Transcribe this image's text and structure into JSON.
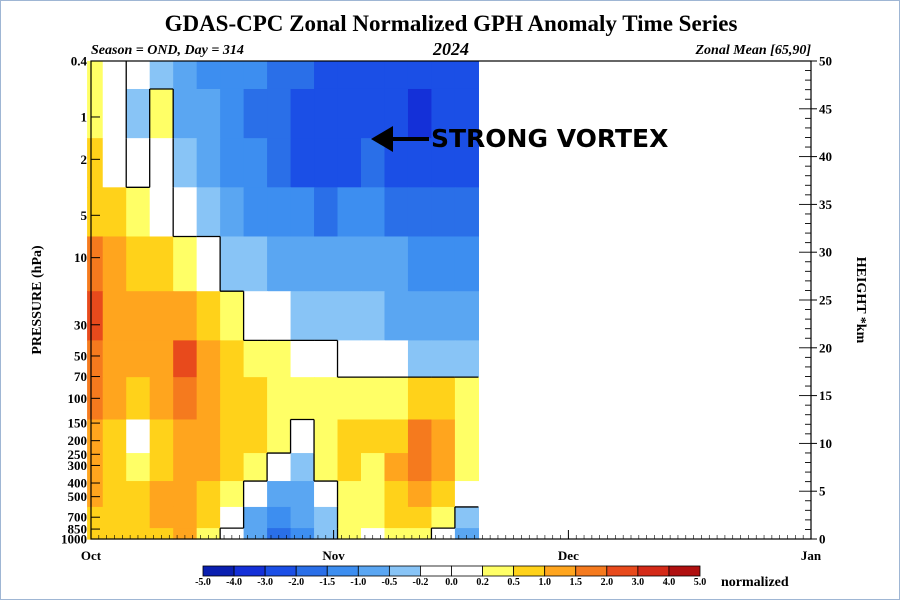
{
  "chart_data": {
    "type": "heatmap",
    "title": "GDAS-CPC Zonal Normalized GPH Anomaly Time Series",
    "season_label": "Season = OND, Day = 314",
    "year_label": "2024",
    "region_label": "Zonal Mean [65,90]",
    "ylabel": "PRESSURE (hPa)",
    "y2label": "HEIGHT *km",
    "colorbar_label": "normalized",
    "annotation": "STRONG VORTEX",
    "x_ticks": [
      "Oct",
      "Nov",
      "Dec",
      "Jan"
    ],
    "y_ticks": [
      "0.4",
      "1",
      "2",
      "5",
      "10",
      "30",
      "50",
      "70",
      "100",
      "150",
      "200",
      "250",
      "300",
      "400",
      "500",
      "700",
      "850",
      "1000"
    ],
    "y2_ticks": [
      "50",
      "45",
      "40",
      "35",
      "30",
      "25",
      "20",
      "15",
      "10",
      "5",
      "0"
    ],
    "colorbar_levels": [
      "-5.0",
      "-4.0",
      "-3.0",
      "-2.0",
      "-1.5",
      "-1.0",
      "-0.5",
      "-0.2",
      "0.0",
      "0.2",
      "0.5",
      "1.0",
      "1.5",
      "2.0",
      "3.0",
      "4.0",
      "5.0"
    ],
    "colorbar_colors": [
      "#0a1fb0",
      "#1430d8",
      "#1b4fe6",
      "#2a6fe8",
      "#3d8ef0",
      "#5aa6f2",
      "#88c4f6",
      "#ffffff",
      "#ffffff",
      "#ffff66",
      "#ffd21a",
      "#ffa51e",
      "#f57a1e",
      "#e84a1c",
      "#d42a18",
      "#b01010"
    ],
    "x_days": [
      1,
      4,
      7,
      10,
      13,
      16,
      19,
      22,
      25,
      28,
      31,
      34,
      37,
      40,
      43,
      46,
      49
    ],
    "pressure_levels": [
      0.4,
      1,
      2,
      5,
      10,
      30,
      50,
      100,
      200,
      300,
      500,
      700,
      1000
    ],
    "values": [
      [
        0.3,
        0.1,
        -0.2,
        -0.5,
        -0.8,
        -1.1,
        -1.3,
        -1.5,
        -1.7,
        -2.0,
        -2.2,
        -2.2,
        -2.1,
        -2.4,
        -2.8,
        -2.6,
        -2.2
      ],
      [
        0.4,
        0.0,
        -0.3,
        0.2,
        -0.7,
        -1.0,
        -1.3,
        -1.6,
        -1.9,
        -2.3,
        -2.6,
        -2.3,
        -2.1,
        -2.6,
        -3.2,
        -2.9,
        -2.3
      ],
      [
        0.5,
        0.1,
        -0.1,
        0.1,
        -0.5,
        -0.9,
        -1.2,
        -1.5,
        -1.7,
        -2.1,
        -2.4,
        -2.1,
        -2.0,
        -2.3,
        -2.9,
        -2.7,
        -2.2
      ],
      [
        0.9,
        0.5,
        0.3,
        0.1,
        -0.2,
        -0.5,
        -0.8,
        -1.1,
        -1.2,
        -1.4,
        -1.6,
        -1.4,
        -1.4,
        -1.6,
        -1.9,
        -2.0,
        -1.8
      ],
      [
        1.6,
        1.1,
        0.8,
        0.6,
        0.3,
        0.0,
        -0.3,
        -0.5,
        -0.6,
        -0.7,
        -0.9,
        -0.9,
        -1.0,
        -1.0,
        -1.3,
        -1.4,
        -1.4
      ],
      [
        2.1,
        1.4,
        1.2,
        1.3,
        1.4,
        0.8,
        0.3,
        -0.1,
        -0.2,
        -0.3,
        -0.4,
        -0.5,
        -0.5,
        -0.6,
        -0.8,
        -0.9,
        -0.9
      ],
      [
        1.8,
        1.3,
        1.1,
        1.3,
        2.1,
        1.1,
        0.6,
        0.3,
        0.2,
        0.1,
        0.0,
        -0.1,
        -0.1,
        -0.2,
        -0.3,
        -0.4,
        -0.4
      ],
      [
        1.5,
        1.2,
        0.9,
        1.0,
        1.6,
        1.0,
        0.8,
        0.7,
        0.4,
        0.2,
        0.3,
        0.4,
        0.3,
        0.4,
        0.6,
        0.5,
        0.2
      ],
      [
        1.2,
        0.6,
        0.1,
        0.6,
        1.4,
        1.1,
        0.9,
        0.6,
        0.3,
        -0.1,
        0.4,
        0.6,
        0.5,
        0.9,
        1.6,
        1.3,
        0.3
      ],
      [
        1.1,
        0.7,
        0.4,
        0.8,
        1.3,
        1.0,
        0.6,
        0.3,
        -0.2,
        -0.5,
        0.2,
        0.5,
        0.4,
        1.0,
        1.8,
        1.4,
        0.3
      ],
      [
        1.0,
        0.8,
        0.7,
        1.0,
        1.2,
        0.8,
        0.4,
        -0.1,
        -0.7,
        -1.0,
        -0.1,
        0.4,
        0.3,
        0.8,
        1.1,
        0.9,
        0.1
      ],
      [
        0.9,
        0.9,
        0.8,
        1.0,
        1.1,
        0.6,
        0.1,
        -0.6,
        -1.4,
        -1.0,
        -0.3,
        0.3,
        0.2,
        0.6,
        0.6,
        0.3,
        -0.3
      ],
      [
        0.8,
        0.8,
        0.8,
        0.9,
        1.0,
        0.4,
        -0.2,
        -1.0,
        -2.0,
        -1.2,
        -0.5,
        0.2,
        0.1,
        0.4,
        0.3,
        -0.2,
        -0.6
      ]
    ]
  }
}
